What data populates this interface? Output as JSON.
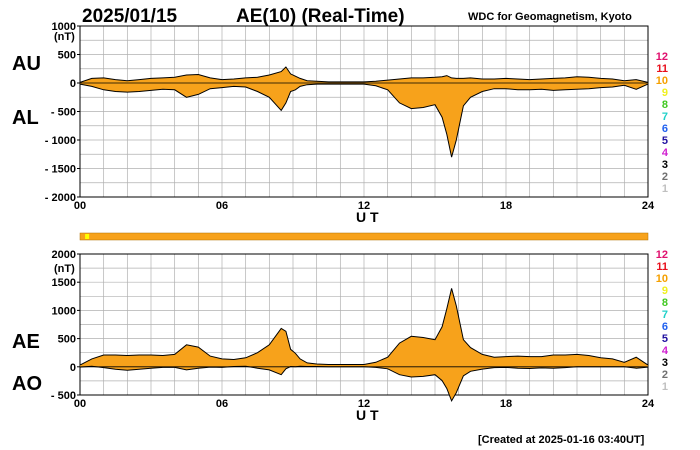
{
  "header": {
    "date": "2025/01/15",
    "title": "AE(10) (Real-Time)",
    "source": "WDC for Geomagnetism, Kyoto"
  },
  "footer": {
    "created": "[Created at 2025-01-16 03:40UT]"
  },
  "colors": {
    "fill": "#f7a21b",
    "line": "#000000",
    "grid": "#b0b0b0",
    "bar": "#f7a21b",
    "bar_marker": "#ffff00"
  },
  "stations": [
    {
      "label": "12",
      "color": "#e0106e"
    },
    {
      "label": "11",
      "color": "#e8101c"
    },
    {
      "label": "10",
      "color": "#f5a000"
    },
    {
      "label": "9",
      "color": "#f0f020"
    },
    {
      "label": "8",
      "color": "#40c820"
    },
    {
      "label": "7",
      "color": "#20d0c8"
    },
    {
      "label": "6",
      "color": "#2060f0"
    },
    {
      "label": "5",
      "color": "#2010a0"
    },
    {
      "label": "4",
      "color": "#d020d0"
    },
    {
      "label": "3",
      "color": "#000000"
    },
    {
      "label": "2",
      "color": "#707070"
    },
    {
      "label": "1",
      "color": "#c0c0c0"
    }
  ],
  "station_bar": {
    "coverage_start": 0,
    "coverage_end": 24,
    "marker_at_hour": 0.3
  },
  "chart_data": [
    {
      "type": "area",
      "name": "AU/AL",
      "upper_label": "AU",
      "lower_label": "AL",
      "xlabel": "U T",
      "ylabel": "(nT)",
      "xlim": [
        0,
        24
      ],
      "ylim": [
        -2000,
        1000
      ],
      "yticks": [
        1000,
        500,
        0,
        -500,
        -1000,
        -1500,
        -2000
      ],
      "yticklabels": [
        "1000",
        "500",
        "0",
        "- 500",
        "- 1000",
        "- 1500",
        "- 2000"
      ],
      "xticks": [
        0,
        6,
        12,
        18,
        24
      ],
      "xticklabels": [
        "00",
        "06",
        "12",
        "18",
        "24"
      ],
      "series": [
        {
          "name": "AU",
          "x": [
            0,
            0.5,
            1,
            1.5,
            2,
            2.5,
            3,
            3.5,
            4,
            4.5,
            5,
            5.5,
            6,
            6.5,
            7,
            7.5,
            8,
            8.5,
            8.7,
            8.9,
            9.1,
            9.3,
            9.6,
            10,
            10.5,
            11,
            11.5,
            12,
            12.5,
            13,
            13.5,
            14,
            14.5,
            15,
            15.3,
            15.5,
            15.7,
            15.9,
            16.2,
            16.5,
            17,
            17.5,
            18,
            18.5,
            19,
            19.5,
            20,
            20.5,
            21,
            21.5,
            22,
            22.5,
            23,
            23.5,
            24
          ],
          "values": [
            10,
            80,
            90,
            60,
            40,
            60,
            80,
            90,
            100,
            140,
            150,
            90,
            60,
            70,
            90,
            100,
            140,
            200,
            280,
            160,
            120,
            80,
            40,
            30,
            20,
            20,
            20,
            20,
            30,
            50,
            70,
            90,
            90,
            100,
            110,
            130,
            90,
            80,
            80,
            90,
            70,
            70,
            80,
            70,
            60,
            70,
            80,
            90,
            110,
            100,
            80,
            70,
            40,
            60,
            10
          ]
        },
        {
          "name": "AL",
          "x": [
            0,
            0.5,
            1,
            1.5,
            2,
            2.5,
            3,
            3.5,
            4,
            4.5,
            5,
            5.5,
            6,
            6.5,
            7,
            7.5,
            8,
            8.5,
            8.7,
            8.9,
            9.1,
            9.3,
            9.6,
            10,
            10.5,
            11,
            11.5,
            12,
            12.5,
            13,
            13.5,
            14,
            14.5,
            15,
            15.3,
            15.5,
            15.7,
            15.9,
            16.2,
            16.5,
            17,
            17.5,
            18,
            18.5,
            19,
            19.5,
            20,
            20.5,
            21,
            21.5,
            22,
            22.5,
            23,
            23.5,
            24
          ],
          "values": [
            -20,
            -60,
            -120,
            -150,
            -160,
            -150,
            -130,
            -110,
            -120,
            -250,
            -200,
            -100,
            -80,
            -60,
            -70,
            -150,
            -250,
            -480,
            -350,
            -150,
            -120,
            -60,
            -30,
            -20,
            -20,
            -20,
            -20,
            -20,
            -50,
            -120,
            -350,
            -450,
            -430,
            -380,
            -600,
            -900,
            -1300,
            -1000,
            -400,
            -250,
            -150,
            -100,
            -100,
            -120,
            -120,
            -110,
            -130,
            -120,
            -110,
            -100,
            -80,
            -70,
            -40,
            -110,
            -20
          ]
        }
      ]
    },
    {
      "type": "area",
      "name": "AE/AO",
      "upper_label": "AE",
      "lower_label": "AO",
      "xlabel": "U T",
      "ylabel": "(nT)",
      "xlim": [
        0,
        24
      ],
      "ylim": [
        -500,
        2000
      ],
      "yticks": [
        2000,
        1500,
        1000,
        500,
        0,
        -500
      ],
      "yticklabels": [
        "2000",
        "1500",
        "1000",
        "500",
        "0",
        "- 500"
      ],
      "xticks": [
        0,
        6,
        12,
        18,
        24
      ],
      "xticklabels": [
        "00",
        "06",
        "12",
        "18",
        "24"
      ],
      "series": [
        {
          "name": "AE",
          "x": [
            0,
            0.5,
            1,
            1.5,
            2,
            2.5,
            3,
            3.5,
            4,
            4.5,
            5,
            5.5,
            6,
            6.5,
            7,
            7.5,
            8,
            8.5,
            8.7,
            8.9,
            9.1,
            9.3,
            9.6,
            10,
            10.5,
            11,
            11.5,
            12,
            12.5,
            13,
            13.5,
            14,
            14.5,
            15,
            15.3,
            15.5,
            15.7,
            15.9,
            16.2,
            16.5,
            17,
            17.5,
            18,
            18.5,
            19,
            19.5,
            20,
            20.5,
            21,
            21.5,
            22,
            22.5,
            23,
            23.5,
            24
          ],
          "values": [
            30,
            140,
            210,
            210,
            200,
            210,
            210,
            200,
            220,
            390,
            350,
            190,
            140,
            130,
            160,
            250,
            390,
            680,
            630,
            310,
            240,
            140,
            70,
            50,
            40,
            40,
            40,
            40,
            80,
            170,
            420,
            540,
            520,
            480,
            710,
            1030,
            1390,
            1080,
            480,
            340,
            220,
            170,
            180,
            190,
            180,
            180,
            210,
            210,
            220,
            200,
            160,
            140,
            80,
            170,
            30
          ]
        },
        {
          "name": "AO",
          "x": [
            0,
            0.5,
            1,
            1.5,
            2,
            2.5,
            3,
            3.5,
            4,
            4.5,
            5,
            5.5,
            6,
            6.5,
            7,
            7.5,
            8,
            8.5,
            8.7,
            8.9,
            9.1,
            9.3,
            9.6,
            10,
            10.5,
            11,
            11.5,
            12,
            12.5,
            13,
            13.5,
            14,
            14.5,
            15,
            15.3,
            15.5,
            15.7,
            15.9,
            16.2,
            16.5,
            17,
            17.5,
            18,
            18.5,
            19,
            19.5,
            20,
            20.5,
            21,
            21.5,
            22,
            22.5,
            23,
            23.5,
            24
          ],
          "values": [
            -5,
            10,
            -15,
            -45,
            -60,
            -45,
            -25,
            -10,
            -10,
            -55,
            -25,
            -5,
            -10,
            5,
            10,
            -25,
            -55,
            -140,
            -35,
            5,
            0,
            10,
            5,
            5,
            0,
            0,
            0,
            0,
            -10,
            -35,
            -140,
            -180,
            -170,
            -140,
            -245,
            -385,
            -605,
            -460,
            -160,
            -80,
            -40,
            -15,
            -10,
            -25,
            -30,
            -20,
            -25,
            -15,
            0,
            0,
            0,
            0,
            0,
            -25,
            -5
          ]
        }
      ]
    }
  ]
}
